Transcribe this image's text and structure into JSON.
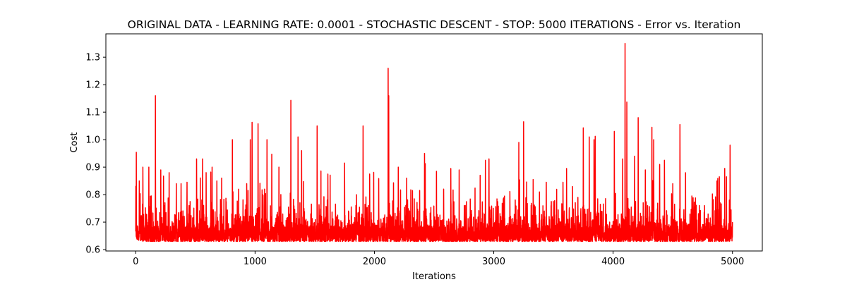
{
  "chart_data": {
    "type": "line",
    "title": "ORIGINAL DATA - LEARNING RATE: 0.0001 - STOCHASTIC DESCENT - STOP: 5000 ITERATIONS - Error vs. Iteration",
    "xlabel": "Iterations",
    "ylabel": "Cost",
    "xlim": [
      -250,
      5250
    ],
    "ylim": [
      0.595,
      1.385
    ],
    "xticks": [
      0,
      1000,
      2000,
      3000,
      4000,
      5000
    ],
    "yticks": [
      0.6,
      0.7,
      0.8,
      0.9,
      1.0,
      1.1,
      1.2,
      1.3
    ],
    "ytick_labels": [
      "0.6",
      "0.7",
      "0.8",
      "0.9",
      "1.0",
      "1.1",
      "1.2",
      "1.3"
    ],
    "grid": false,
    "line_color": "#ff0000",
    "series": [
      {
        "x_range": [
          0,
          5000
        ],
        "baseline_min": 0.63,
        "peaks": [
          {
            "x": 5,
            "y": 0.954
          },
          {
            "x": 30,
            "y": 0.85
          },
          {
            "x": 60,
            "y": 0.9
          },
          {
            "x": 110,
            "y": 0.9
          },
          {
            "x": 165,
            "y": 1.16
          },
          {
            "x": 210,
            "y": 0.89
          },
          {
            "x": 280,
            "y": 0.88
          },
          {
            "x": 340,
            "y": 0.84
          },
          {
            "x": 380,
            "y": 0.84
          },
          {
            "x": 430,
            "y": 0.845
          },
          {
            "x": 510,
            "y": 0.93
          },
          {
            "x": 560,
            "y": 0.93
          },
          {
            "x": 590,
            "y": 0.88
          },
          {
            "x": 640,
            "y": 0.9
          },
          {
            "x": 680,
            "y": 0.85
          },
          {
            "x": 720,
            "y": 0.86
          },
          {
            "x": 810,
            "y": 1.0
          },
          {
            "x": 930,
            "y": 0.84
          },
          {
            "x": 960,
            "y": 1.0
          },
          {
            "x": 975,
            "y": 1.063
          },
          {
            "x": 1025,
            "y": 1.058
          },
          {
            "x": 1080,
            "y": 0.82
          },
          {
            "x": 1100,
            "y": 1.0
          },
          {
            "x": 1140,
            "y": 0.947
          },
          {
            "x": 1200,
            "y": 0.9
          },
          {
            "x": 1300,
            "y": 1.143
          },
          {
            "x": 1360,
            "y": 1.01
          },
          {
            "x": 1390,
            "y": 0.96
          },
          {
            "x": 1520,
            "y": 1.05
          },
          {
            "x": 1610,
            "y": 0.875
          },
          {
            "x": 1750,
            "y": 0.915
          },
          {
            "x": 1850,
            "y": 0.8
          },
          {
            "x": 1905,
            "y": 1.05
          },
          {
            "x": 1960,
            "y": 0.875
          },
          {
            "x": 2115,
            "y": 1.26
          },
          {
            "x": 2120,
            "y": 1.16
          },
          {
            "x": 2160,
            "y": 0.843
          },
          {
            "x": 2200,
            "y": 0.9
          },
          {
            "x": 2270,
            "y": 0.86
          },
          {
            "x": 2420,
            "y": 0.95
          },
          {
            "x": 2520,
            "y": 0.885
          },
          {
            "x": 2580,
            "y": 0.82
          },
          {
            "x": 2640,
            "y": 0.895
          },
          {
            "x": 2710,
            "y": 0.89
          },
          {
            "x": 2930,
            "y": 0.925
          },
          {
            "x": 2960,
            "y": 0.93
          },
          {
            "x": 3080,
            "y": 0.785
          },
          {
            "x": 3210,
            "y": 0.99
          },
          {
            "x": 3250,
            "y": 1.065
          },
          {
            "x": 3330,
            "y": 0.855
          },
          {
            "x": 3440,
            "y": 0.845
          },
          {
            "x": 3580,
            "y": 0.845
          },
          {
            "x": 3610,
            "y": 0.895
          },
          {
            "x": 3750,
            "y": 1.043
          },
          {
            "x": 3800,
            "y": 1.01
          },
          {
            "x": 3840,
            "y": 1.0
          },
          {
            "x": 3850,
            "y": 1.012
          },
          {
            "x": 4010,
            "y": 1.03
          },
          {
            "x": 4080,
            "y": 0.93
          },
          {
            "x": 4100,
            "y": 1.35
          },
          {
            "x": 4115,
            "y": 1.137
          },
          {
            "x": 4180,
            "y": 0.94
          },
          {
            "x": 4210,
            "y": 1.08
          },
          {
            "x": 4270,
            "y": 0.89
          },
          {
            "x": 4325,
            "y": 1.045
          },
          {
            "x": 4340,
            "y": 1.0
          },
          {
            "x": 4390,
            "y": 0.91
          },
          {
            "x": 4430,
            "y": 0.925
          },
          {
            "x": 4500,
            "y": 0.84
          },
          {
            "x": 4560,
            "y": 1.055
          },
          {
            "x": 4660,
            "y": 0.795
          },
          {
            "x": 4870,
            "y": 0.85
          },
          {
            "x": 4890,
            "y": 0.865
          },
          {
            "x": 4950,
            "y": 0.865
          },
          {
            "x": 4980,
            "y": 0.98
          },
          {
            "x": 5000,
            "y": 0.7
          }
        ]
      }
    ]
  }
}
